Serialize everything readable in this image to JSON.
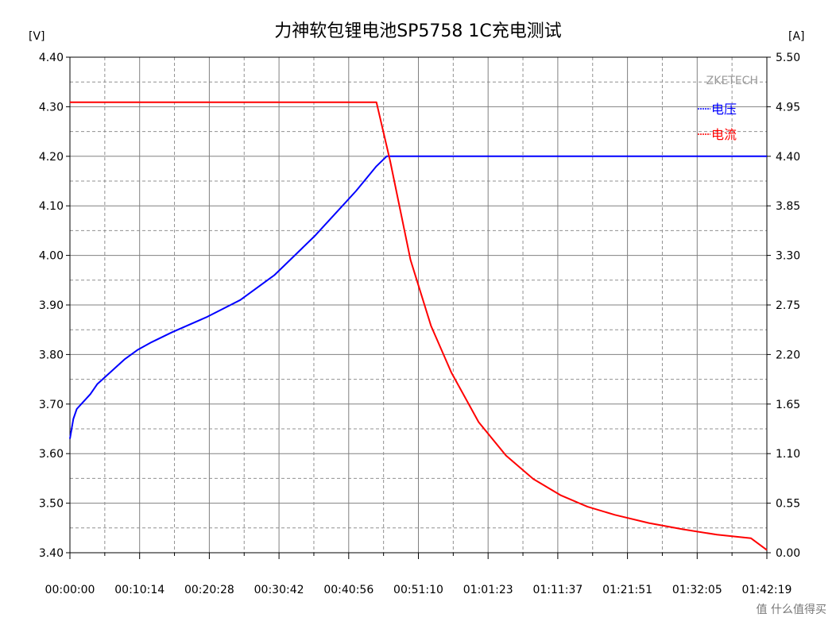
{
  "chart_data": {
    "type": "line",
    "title": "力神软包锂电池SP5758 1C充电测试",
    "brand": "ZKETECH",
    "y_left_unit": "[V]",
    "y_right_unit": "[A]",
    "y_left_range": [
      3.4,
      4.4
    ],
    "y_right_range": [
      0.0,
      5.5
    ],
    "y_left_ticks": [
      "4.40",
      "4.30",
      "4.20",
      "4.10",
      "4.00",
      "3.90",
      "3.80",
      "3.70",
      "3.60",
      "3.50",
      "3.40"
    ],
    "y_right_ticks": [
      "5.50",
      "4.95",
      "4.40",
      "3.85",
      "3.30",
      "2.75",
      "2.20",
      "1.65",
      "1.10",
      "0.55",
      "0.00"
    ],
    "x_range_seconds": [
      0,
      6139
    ],
    "x_ticks": [
      "00:00:00",
      "00:10:14",
      "00:20:28",
      "00:30:42",
      "00:40:56",
      "00:51:10",
      "01:01:23",
      "01:11:37",
      "01:21:51",
      "01:32:05",
      "01:42:19"
    ],
    "grid": true,
    "legend_position": "top-right",
    "series": [
      {
        "name": "电压",
        "axis": "left",
        "color": "#0000ff",
        "x": [
          "00:00:00",
          "00:00:30",
          "00:01:00",
          "00:02:00",
          "00:03:00",
          "00:04:00",
          "00:06:00",
          "00:08:00",
          "00:10:00",
          "00:12:00",
          "00:15:00",
          "00:20:00",
          "00:25:00",
          "00:30:00",
          "00:33:00",
          "00:36:00",
          "00:39:00",
          "00:42:00",
          "00:45:00",
          "00:46:30",
          "00:48:00",
          "01:42:19"
        ],
        "values": [
          3.63,
          3.67,
          3.69,
          3.705,
          3.72,
          3.74,
          3.765,
          3.79,
          3.81,
          3.825,
          3.845,
          3.875,
          3.91,
          3.96,
          4.0,
          4.04,
          4.085,
          4.13,
          4.18,
          4.2,
          4.2,
          4.2
        ]
      },
      {
        "name": "电流",
        "axis": "right",
        "color": "#ff0000",
        "x": [
          "00:00:00",
          "00:45:00",
          "00:47:00",
          "00:50:00",
          "00:53:00",
          "00:56:00",
          "01:00:00",
          "01:04:00",
          "01:08:00",
          "01:12:00",
          "01:16:00",
          "01:20:00",
          "01:25:00",
          "01:30:00",
          "01:35:00",
          "01:40:00",
          "01:42:19"
        ],
        "values": [
          5.0,
          5.0,
          4.35,
          3.25,
          2.52,
          2.0,
          1.45,
          1.08,
          0.82,
          0.64,
          0.51,
          0.42,
          0.33,
          0.26,
          0.2,
          0.16,
          0.03
        ]
      }
    ]
  },
  "watermark": "值 什么值得买"
}
